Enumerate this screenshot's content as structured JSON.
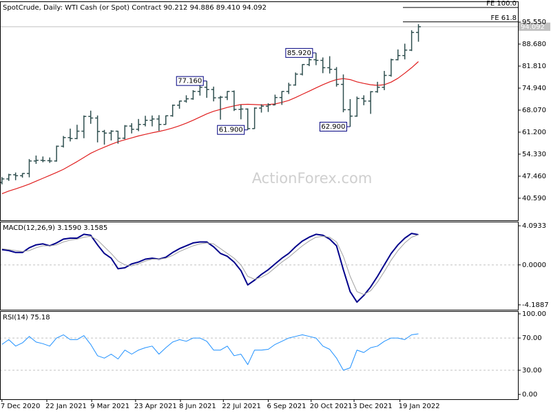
{
  "chart_data": [
    {
      "type": "ohlc",
      "title": "SpotCrude, Daily:  WTI Cash (or Spot) Contract  90.212 94.886 89.410 94.092",
      "watermark": "ActionForex.com",
      "x": [
        "7 Dec 2020",
        "14 Dec 2020",
        "21 Dec 2020",
        "28 Dec 2020",
        "4 Jan 2021",
        "11 Jan 2021",
        "18 Jan 2021",
        "25 Jan 2021",
        "1 Feb 2021",
        "8 Feb 2021",
        "15 Feb 2021",
        "22 Feb 2021",
        "1 Mar 2021",
        "8 Mar 2021",
        "15 Mar 2021",
        "22 Mar 2021",
        "29 Mar 2021",
        "5 Apr 2021",
        "12 Apr 2021",
        "19 Apr 2021",
        "26 Apr 2021",
        "3 May 2021",
        "10 May 2021",
        "17 May 2021",
        "24 May 2021",
        "31 May 2021",
        "7 Jun 2021",
        "14 Jun 2021",
        "21 Jun 2021",
        "28 Jun 2021",
        "5 Jul 2021",
        "12 Jul 2021",
        "19 Jul 2021",
        "26 Jul 2021",
        "2 Aug 2021",
        "9 Aug 2021",
        "16 Aug 2021",
        "23 Aug 2021",
        "30 Aug 2021",
        "6 Sep 2021",
        "13 Sep 2021",
        "20 Sep 2021",
        "27 Sep 2021",
        "4 Oct 2021",
        "11 Oct 2021",
        "18 Oct 2021",
        "25 Oct 2021",
        "1 Nov 2021",
        "8 Nov 2021",
        "15 Nov 2021",
        "22 Nov 2021",
        "29 Nov 2021",
        "6 Dec 2021",
        "13 Dec 2021",
        "20 Dec 2021",
        "27 Dec 2021",
        "3 Jan 2022",
        "10 Jan 2022",
        "17 Jan 2022",
        "24 Jan 2022",
        "31 Jan 2022",
        "7 Feb 2022"
      ],
      "open": [
        45.5,
        46.6,
        47.9,
        47.6,
        48.3,
        52.2,
        52.4,
        52.3,
        52.2,
        56.8,
        59.5,
        59.2,
        61.5,
        66.1,
        65.6,
        61.4,
        60.9,
        61.5,
        59.3,
        63.1,
        62.1,
        63.6,
        64.9,
        65.3,
        63.6,
        66.3,
        69.6,
        70.9,
        71.6,
        73.9,
        75.2,
        74.5,
        71.9,
        72.1,
        73.9,
        68.3,
        68.4,
        62.3,
        68.7,
        69.3,
        69.7,
        72.0,
        73.9,
        75.9,
        79.3,
        82.3,
        83.8,
        83.6,
        81.3,
        80.8,
        76.1,
        68.2,
        66.2,
        71.7,
        70.9,
        73.8,
        75.2,
        78.9,
        83.8,
        85.1,
        86.8,
        92.3
      ],
      "high": [
        47.2,
        48.2,
        48.6,
        48.4,
        52.8,
        53.9,
        53.6,
        53.3,
        57.0,
        60.0,
        62.3,
        63.5,
        66.4,
        67.9,
        66.4,
        61.9,
        61.8,
        61.6,
        63.4,
        64.0,
        65.3,
        66.3,
        66.4,
        66.5,
        66.4,
        69.8,
        71.0,
        72.7,
        74.3,
        75.8,
        77.16,
        75.4,
        72.5,
        74.0,
        74.2,
        69.7,
        68.6,
        68.9,
        69.9,
        70.2,
        72.9,
        74.0,
        76.6,
        79.8,
        82.4,
        84.3,
        85.92,
        84.5,
        84.9,
        81.5,
        79.2,
        71.5,
        72.3,
        72.7,
        74.0,
        76.9,
        80.3,
        84.1,
        87.0,
        88.8,
        93.0,
        94.886
      ],
      "low": [
        44.9,
        46.0,
        46.2,
        47.0,
        47.1,
        51.3,
        51.8,
        51.6,
        52.0,
        56.4,
        58.3,
        59.0,
        59.3,
        63.8,
        58.0,
        57.3,
        58.6,
        57.6,
        59.0,
        60.8,
        61.5,
        63.0,
        63.0,
        61.6,
        63.5,
        66.0,
        68.5,
        70.4,
        71.3,
        72.6,
        71.9,
        70.8,
        65.1,
        71.2,
        67.8,
        65.2,
        61.9,
        62.2,
        67.3,
        67.5,
        69.6,
        69.7,
        73.1,
        75.7,
        78.9,
        81.8,
        82.1,
        79.6,
        79.5,
        75.4,
        67.4,
        62.9,
        66.0,
        69.6,
        66.9,
        73.5,
        74.3,
        78.5,
        83.6,
        83.9,
        86.5,
        89.41
      ],
      "close": [
        46.6,
        47.9,
        47.6,
        48.3,
        52.2,
        52.4,
        52.3,
        52.2,
        56.8,
        59.5,
        59.2,
        61.5,
        66.1,
        65.6,
        61.4,
        60.9,
        61.5,
        59.3,
        63.1,
        62.1,
        63.6,
        64.9,
        65.3,
        63.6,
        66.3,
        69.6,
        70.9,
        71.6,
        73.9,
        75.2,
        74.5,
        71.9,
        72.1,
        73.9,
        68.3,
        68.4,
        62.3,
        68.7,
        69.3,
        69.7,
        72.0,
        73.9,
        75.9,
        79.3,
        82.3,
        83.8,
        83.6,
        81.3,
        80.8,
        76.1,
        68.2,
        66.2,
        71.7,
        70.9,
        73.8,
        75.2,
        78.9,
        83.8,
        85.1,
        86.8,
        92.3,
        94.092
      ],
      "color": "#2f4f4f",
      "overlay": {
        "color": "#e01e1e",
        "values": [
          42.0,
          42.8,
          43.5,
          44.2,
          45.0,
          45.9,
          46.8,
          47.7,
          48.6,
          49.6,
          50.8,
          52.0,
          53.3,
          54.6,
          55.6,
          56.5,
          57.4,
          58.2,
          58.8,
          59.4,
          60.0,
          60.5,
          61.0,
          61.4,
          61.9,
          62.5,
          63.2,
          64.0,
          64.9,
          65.9,
          66.9,
          67.7,
          68.3,
          68.9,
          69.4,
          69.8,
          69.9,
          69.8,
          69.7,
          69.8,
          70.0,
          70.5,
          71.1,
          72.0,
          73.0,
          74.0,
          75.0,
          76.0,
          76.9,
          77.6,
          77.9,
          77.6,
          76.9,
          76.4,
          76.0,
          75.8,
          76.0,
          76.8,
          78.0,
          79.6,
          81.3,
          83.2
        ]
      },
      "xlim": [
        "5 Dec 2020",
        "20 May 2022"
      ],
      "xticks": [
        "7 Dec 2020",
        "22 Jan 2021",
        "9 Mar 2021",
        "23 Apr 2021",
        "8 Jun 2021",
        "22 Jul 2021",
        "6 Sep 2021",
        "20 Oct 2021",
        "3 Dec 2021",
        "19 Jan 2022"
      ],
      "ylim": [
        33.7,
        102.0
      ],
      "yticks": [
        {
          "value": 40.59,
          "label": "40.590"
        },
        {
          "value": 47.46,
          "label": "47.460"
        },
        {
          "value": 54.33,
          "label": "54.330"
        },
        {
          "value": 61.2,
          "label": "61.200"
        },
        {
          "value": 68.07,
          "label": "68.070"
        },
        {
          "value": 74.94,
          "label": "74.940"
        },
        {
          "value": 81.81,
          "label": "81.810"
        },
        {
          "value": 88.68,
          "label": "88.680"
        },
        {
          "value": 95.55,
          "label": "95.550"
        }
      ],
      "last_price": {
        "value": 94.092,
        "label": "94.092"
      },
      "fib_levels": [
        {
          "value": 100.1,
          "label": "FE 100.0"
        },
        {
          "value": 95.6,
          "label": "FE 61.8"
        }
      ],
      "annotations": [
        {
          "x": "5 Jul 2021",
          "value": 77.16,
          "label": "77.160"
        },
        {
          "x": "16 Aug 2021",
          "value": 61.9,
          "label": "61.900"
        },
        {
          "x": "25 Oct 2021",
          "value": 85.92,
          "label": "85.920"
        },
        {
          "x": "29 Nov 2021",
          "value": 62.9,
          "label": "62.900"
        }
      ]
    },
    {
      "type": "line",
      "title": "MACD(12,26,9) 3.1590 3.1585",
      "series": [
        {
          "color": "#00008b",
          "values": [
            1.6,
            1.5,
            1.3,
            1.3,
            1.8,
            2.1,
            2.2,
            2.0,
            2.3,
            2.7,
            2.8,
            2.8,
            3.2,
            3.1,
            2.1,
            1.2,
            0.7,
            -0.4,
            -0.3,
            0.1,
            0.3,
            0.6,
            0.7,
            0.6,
            0.8,
            1.3,
            1.7,
            2.0,
            2.3,
            2.4,
            2.4,
            1.9,
            1.2,
            0.9,
            0.3,
            -0.6,
            -2.1,
            -1.6,
            -1.0,
            -0.5,
            0.1,
            0.7,
            1.2,
            1.9,
            2.5,
            2.9,
            3.2,
            3.1,
            2.7,
            2.0,
            -0.5,
            -2.8,
            -3.9,
            -3.2,
            -2.3,
            -1.2,
            0.0,
            1.2,
            2.1,
            2.8,
            3.3,
            3.159
          ]
        },
        {
          "color": "#a0a0a0",
          "values": [
            1.7,
            1.6,
            1.5,
            1.4,
            1.5,
            1.8,
            2.0,
            2.0,
            2.1,
            2.4,
            2.6,
            2.7,
            2.9,
            3.0,
            2.6,
            1.9,
            1.2,
            0.4,
            0.0,
            -0.1,
            0.1,
            0.4,
            0.6,
            0.6,
            0.7,
            1.0,
            1.4,
            1.7,
            2.0,
            2.2,
            2.3,
            2.2,
            1.7,
            1.2,
            0.7,
            0.0,
            -1.2,
            -1.5,
            -1.3,
            -0.9,
            -0.3,
            0.3,
            0.8,
            1.4,
            2.0,
            2.5,
            2.9,
            3.0,
            2.9,
            2.4,
            0.9,
            -1.2,
            -2.8,
            -3.1,
            -2.7,
            -1.8,
            -0.7,
            0.5,
            1.5,
            2.3,
            2.9,
            3.1585
          ]
        }
      ],
      "ylim": [
        -4.7,
        4.53
      ],
      "yticks": [
        {
          "value": 4.0933,
          "label": "4.0933"
        },
        {
          "value": 0,
          "label": "0.0000"
        },
        {
          "value": -4.1887,
          "label": "-4.1887"
        }
      ],
      "levels": [
        0
      ]
    },
    {
      "type": "line",
      "title": "RSI(14) 75.18",
      "series": [
        {
          "color": "#1e90ff",
          "values": [
            62,
            68,
            60,
            64,
            72,
            65,
            63,
            60,
            70,
            74,
            68,
            68,
            73,
            62,
            48,
            45,
            50,
            44,
            55,
            50,
            55,
            58,
            60,
            50,
            58,
            65,
            68,
            66,
            70,
            70,
            66,
            55,
            55,
            60,
            48,
            50,
            37,
            55,
            55,
            56,
            62,
            66,
            70,
            72,
            74,
            72,
            70,
            60,
            56,
            45,
            30,
            33,
            55,
            52,
            58,
            60,
            66,
            70,
            70,
            68,
            74,
            75.18
          ]
        }
      ],
      "ylim": [
        -6,
        103.4
      ],
      "yticks": [
        {
          "value": 100,
          "label": "100.00"
        },
        {
          "value": 70,
          "label": "70.00"
        },
        {
          "value": 30,
          "label": "30.00"
        },
        {
          "value": 0,
          "label": "0.00"
        }
      ],
      "levels": [
        70,
        30
      ]
    }
  ]
}
